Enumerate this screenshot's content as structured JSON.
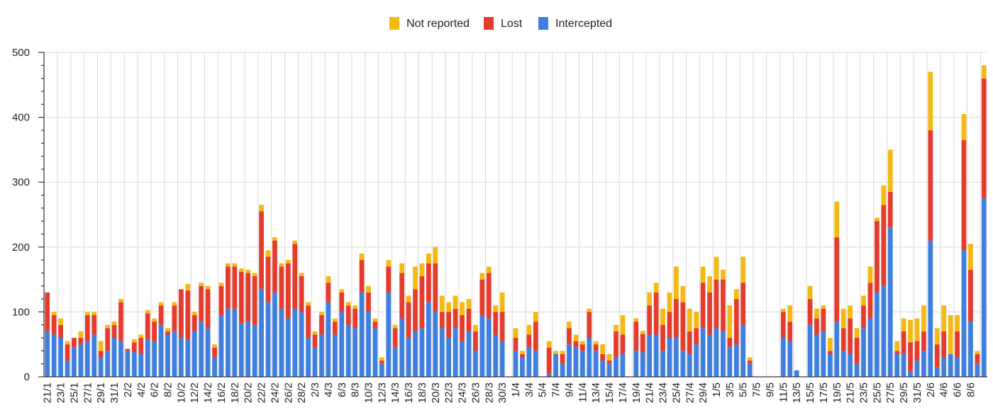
{
  "chart_data": {
    "type": "bar",
    "stacked": true,
    "title": "",
    "xlabel": "",
    "ylabel": "",
    "ylim": [
      0,
      500
    ],
    "yticks": [
      0,
      100,
      200,
      300,
      400,
      500
    ],
    "ytick_labels": [
      "0",
      "100",
      "200",
      "300",
      "400",
      "500"
    ],
    "legend_position": "top-center",
    "grid": true,
    "colors": {
      "Intercepted": "#3f7fdf",
      "Lost": "#e53c2e",
      "Not reported": "#f4b912"
    },
    "x_tick_labels": [
      "21/1",
      "23/1",
      "25/1",
      "27/1",
      "29/1",
      "31/1",
      "2/2",
      "4/2",
      "6/2",
      "8/2",
      "10/2",
      "12/2",
      "14/2",
      "16/2",
      "18/2",
      "20/2",
      "22/2",
      "24/2",
      "26/2",
      "28/2",
      "2/3",
      "4/3",
      "6/3",
      "8/3",
      "10/3",
      "12/3",
      "14/3",
      "16/3",
      "18/3",
      "20/3",
      "22/3",
      "24/3",
      "26/3",
      "28/3",
      "30/3",
      "1/4",
      "3/4",
      "5/4",
      "7/4",
      "9/4",
      "11/4",
      "13/4",
      "15/4",
      "17/4",
      "19/4",
      "21/4",
      "23/4",
      "25/4",
      "27/4",
      "29/4",
      "1/5",
      "3/5",
      "5/5",
      "7/5",
      "9/5",
      "11/5",
      "13/5",
      "15/5",
      "17/5",
      "19/5",
      "21/5",
      "23/5",
      "25/5",
      "27/5",
      "29/5",
      "31/5",
      "2/6",
      "4/6",
      "6/6",
      "8/6"
    ],
    "legend": [
      "Not reported",
      "Lost",
      "Intercepted"
    ],
    "series": [
      {
        "name": "Intercepted",
        "values": [
          70,
          65,
          60,
          25,
          45,
          50,
          55,
          65,
          30,
          40,
          60,
          55,
          40,
          38,
          35,
          58,
          55,
          80,
          65,
          70,
          60,
          58,
          70,
          85,
          75,
          30,
          95,
          105,
          105,
          82,
          85,
          80,
          135,
          115,
          130,
          105,
          90,
          105,
          100,
          60,
          45,
          65,
          115,
          65,
          100,
          80,
          75,
          130,
          100,
          75,
          20,
          130,
          45,
          90,
          60,
          70,
          75,
          115,
          100,
          75,
          60,
          75,
          55,
          70,
          40,
          95,
          90,
          65,
          55,
          0,
          40,
          30,
          45,
          40,
          0,
          5,
          35,
          20,
          50,
          45,
          40,
          60,
          40,
          25,
          20,
          30,
          35,
          0,
          40,
          38,
          65,
          65,
          40,
          60,
          60,
          40,
          35,
          50,
          75,
          65,
          75,
          70,
          45,
          50,
          80,
          20,
          0,
          0,
          0,
          0,
          60,
          55,
          10,
          0,
          80,
          65,
          70,
          35,
          85,
          40,
          35,
          20,
          75,
          90,
          130,
          140,
          230,
          35,
          35,
          8,
          25,
          40,
          210,
          15,
          30,
          35,
          30,
          195,
          85,
          20,
          275
        ]
      },
      {
        "name": "Lost",
        "values": [
          60,
          30,
          20,
          25,
          15,
          10,
          40,
          30,
          10,
          35,
          20,
          60,
          3,
          15,
          25,
          40,
          30,
          30,
          5,
          40,
          75,
          75,
          25,
          55,
          60,
          15,
          45,
          65,
          65,
          80,
          75,
          75,
          120,
          70,
          80,
          65,
          85,
          100,
          55,
          50,
          20,
          30,
          30,
          20,
          30,
          30,
          30,
          50,
          30,
          10,
          5,
          40,
          30,
          70,
          55,
          65,
          80,
          60,
          75,
          25,
          40,
          30,
          40,
          35,
          30,
          55,
          70,
          35,
          45,
          0,
          20,
          5,
          20,
          45,
          0,
          40,
          0,
          15,
          25,
          10,
          10,
          40,
          10,
          10,
          5,
          40,
          30,
          0,
          45,
          28,
          45,
          65,
          40,
          40,
          60,
          75,
          35,
          25,
          70,
          65,
          75,
          80,
          15,
          70,
          65,
          5,
          0,
          0,
          0,
          0,
          40,
          30,
          0,
          0,
          40,
          25,
          35,
          5,
          130,
          35,
          55,
          40,
          35,
          55,
          110,
          125,
          55,
          5,
          35,
          45,
          30,
          30,
          170,
          35,
          40,
          0,
          40,
          170,
          80,
          15,
          185
        ]
      },
      {
        "name": "Not reported",
        "values": [
          0,
          5,
          10,
          5,
          0,
          10,
          5,
          5,
          15,
          5,
          5,
          5,
          0,
          5,
          5,
          5,
          5,
          5,
          5,
          5,
          0,
          10,
          5,
          5,
          5,
          5,
          5,
          5,
          5,
          5,
          5,
          5,
          10,
          10,
          5,
          5,
          5,
          5,
          5,
          5,
          5,
          5,
          10,
          5,
          5,
          5,
          5,
          10,
          10,
          5,
          5,
          10,
          5,
          15,
          10,
          35,
          20,
          15,
          25,
          25,
          15,
          20,
          20,
          15,
          10,
          10,
          10,
          10,
          30,
          0,
          15,
          5,
          15,
          15,
          0,
          10,
          5,
          5,
          10,
          10,
          5,
          5,
          5,
          15,
          10,
          10,
          30,
          0,
          5,
          5,
          20,
          15,
          25,
          30,
          50,
          25,
          35,
          25,
          25,
          25,
          35,
          15,
          50,
          15,
          40,
          5,
          0,
          0,
          0,
          0,
          5,
          25,
          0,
          0,
          20,
          15,
          5,
          20,
          55,
          30,
          20,
          15,
          15,
          25,
          5,
          30,
          65,
          15,
          20,
          35,
          35,
          40,
          90,
          25,
          40,
          60,
          25,
          40,
          40,
          5,
          20
        ]
      }
    ]
  }
}
